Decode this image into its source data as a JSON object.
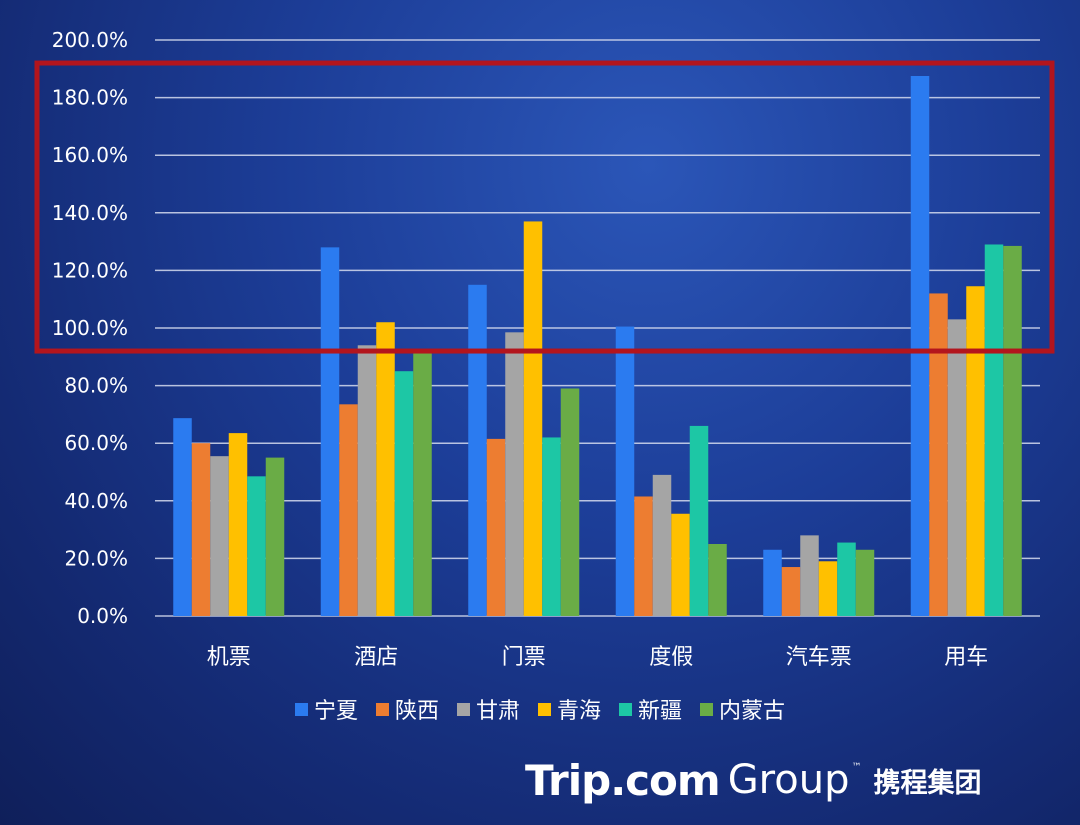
{
  "chart_data": {
    "type": "bar",
    "categories": [
      "机票",
      "酒店",
      "门票",
      "度假",
      "汽车票",
      "用车"
    ],
    "series": [
      {
        "name": "宁夏",
        "color": "#2b7bf0",
        "values": [
          68.7,
          128.0,
          115.0,
          100.5,
          23.0,
          187.5
        ]
      },
      {
        "name": "陕西",
        "color": "#ed7d31",
        "values": [
          60.0,
          73.5,
          61.5,
          41.5,
          17.0,
          112.0
        ]
      },
      {
        "name": "甘肃",
        "color": "#a5a5a5",
        "values": [
          55.5,
          94.0,
          98.5,
          49.0,
          28.0,
          103.0
        ]
      },
      {
        "name": "青海",
        "color": "#ffc000",
        "values": [
          63.5,
          102.0,
          137.0,
          35.5,
          19.0,
          114.5
        ]
      },
      {
        "name": "新疆",
        "color": "#1dc7a5",
        "values": [
          48.5,
          85.0,
          62.0,
          66.0,
          25.5,
          129.0
        ]
      },
      {
        "name": "内蒙古",
        "color": "#6aac46",
        "values": [
          55.0,
          92.0,
          79.0,
          25.0,
          23.0,
          128.5
        ]
      }
    ],
    "yticks": [
      "0.0%",
      "20.0%",
      "40.0%",
      "60.0%",
      "80.0%",
      "100.0%",
      "120.0%",
      "140.0%",
      "160.0%",
      "180.0%",
      "200.0%"
    ],
    "ylim": [
      0,
      200
    ],
    "grid": true,
    "legend_position": "bottom",
    "highlight_range": [
      92,
      192
    ],
    "highlight_color": "#b3151d"
  },
  "logo": {
    "trip": "Trip.com",
    "group": "Group",
    "tm": "™",
    "cn": "携程集团"
  }
}
